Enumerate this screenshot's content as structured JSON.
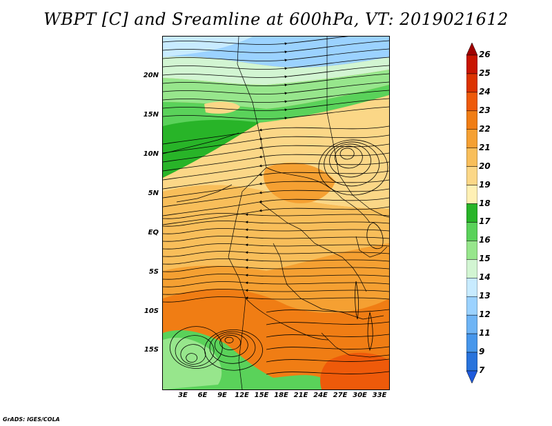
{
  "title": "WBPT [C] and Sreamline at 600hPa, VT: 2019021612",
  "footer": "GrADS: IGES/COLA",
  "y_labels": [
    "20N",
    "15N",
    "10N",
    "5N",
    "EQ",
    "5S",
    "10S",
    "15S"
  ],
  "x_labels": [
    "3E",
    "6E",
    "9E",
    "12E",
    "15E",
    "18E",
    "21E",
    "24E",
    "27E",
    "30E",
    "33E"
  ],
  "colorbar": {
    "labels": [
      "26",
      "25",
      "24",
      "23",
      "22",
      "21",
      "20",
      "19",
      "18",
      "17",
      "16",
      "15",
      "14",
      "13",
      "12",
      "11",
      "9",
      "7"
    ],
    "colors": [
      "#a00000",
      "#c81400",
      "#dc3200",
      "#ee5a0a",
      "#f07d14",
      "#f5a032",
      "#f8be5a",
      "#fbd787",
      "#fff0b4",
      "#28b428",
      "#5ad25a",
      "#97e68c",
      "#d2f5d2",
      "#c8ebff",
      "#9bd2ff",
      "#6eb4f5",
      "#4696eb",
      "#2873dc",
      "#1e5adc"
    ]
  },
  "map_colors": {
    "blue_light": "#c8ebff",
    "blue_mid": "#9bd2ff",
    "green_pale": "#d2f5d2",
    "green_light": "#97e68c",
    "green_mid": "#5ad25a",
    "green_dark": "#28b428",
    "yellow": "#fbd787",
    "orange_light": "#f8be5a",
    "orange": "#f5a032",
    "orange_deep": "#f07d14",
    "red_orange": "#ee5a0a"
  }
}
